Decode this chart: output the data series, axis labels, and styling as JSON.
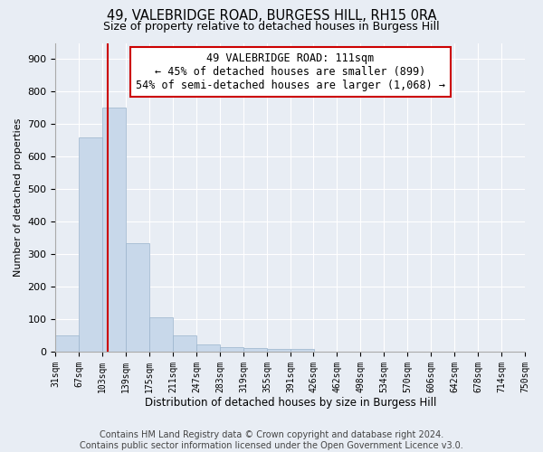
{
  "title": "49, VALEBRIDGE ROAD, BURGESS HILL, RH15 0RA",
  "subtitle": "Size of property relative to detached houses in Burgess Hill",
  "xlabel": "Distribution of detached houses by size in Burgess Hill",
  "ylabel": "Number of detached properties",
  "bin_edges": [
    31,
    67,
    103,
    139,
    175,
    211,
    247,
    283,
    319,
    355,
    391,
    426,
    462,
    498,
    534,
    570,
    606,
    642,
    678,
    714,
    750
  ],
  "bar_heights": [
    50,
    660,
    750,
    335,
    105,
    50,
    22,
    15,
    10,
    8,
    8,
    0,
    0,
    0,
    0,
    0,
    0,
    0,
    0,
    0
  ],
  "bar_color": "#c8d8ea",
  "bar_edge_color": "#9ab4cc",
  "property_line_x": 111,
  "property_line_color": "#cc0000",
  "annotation_box_color": "#cc0000",
  "annotation_line1": "49 VALEBRIDGE ROAD: 111sqm",
  "annotation_line2": "← 45% of detached houses are smaller (899)",
  "annotation_line3": "54% of semi-detached houses are larger (1,068) →",
  "ylim": [
    0,
    950
  ],
  "yticks": [
    0,
    100,
    200,
    300,
    400,
    500,
    600,
    700,
    800,
    900
  ],
  "tick_labels": [
    "31sqm",
    "67sqm",
    "103sqm",
    "139sqm",
    "175sqm",
    "211sqm",
    "247sqm",
    "283sqm",
    "319sqm",
    "355sqm",
    "391sqm",
    "426sqm",
    "462sqm",
    "498sqm",
    "534sqm",
    "570sqm",
    "606sqm",
    "642sqm",
    "678sqm",
    "714sqm",
    "750sqm"
  ],
  "footnote": "Contains HM Land Registry data © Crown copyright and database right 2024.\nContains public sector information licensed under the Open Government Licence v3.0.",
  "background_color": "#e8edf4",
  "plot_bg_color": "#e8edf4",
  "grid_color": "#ffffff",
  "title_fontsize": 10.5,
  "subtitle_fontsize": 9,
  "xlabel_fontsize": 8.5,
  "ylabel_fontsize": 8,
  "footnote_fontsize": 7,
  "annotation_fontsize": 8.5
}
